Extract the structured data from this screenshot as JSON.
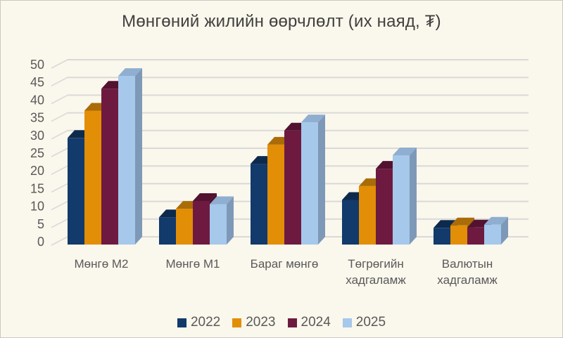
{
  "window": {
    "background_color": "#FAF7EC",
    "border_color": "#CBC8C0"
  },
  "chart_data": {
    "type": "bar",
    "projection": "3d-clustered-column",
    "title": "Мөнгөний жилийн өөрчлөлт (их наяд, ₮)",
    "categories": [
      "Мөнгө M2",
      "Мөнгө M1",
      "Бараг мөнгө",
      "Төгрөгийн хадгаламж",
      "Валютын хадгаламж"
    ],
    "series": [
      {
        "name": "2022",
        "color": "#123A6B",
        "color_top": "#0D2A4D",
        "color_side": "#102F55",
        "values": [
          30.1,
          7.7,
          22.8,
          12.6,
          4.7
        ]
      },
      {
        "name": "2023",
        "color": "#E28E06",
        "color_top": "#AA6C08",
        "color_side": "#9C6407",
        "values": [
          37.8,
          10.1,
          28.2,
          16.5,
          5.4
        ]
      },
      {
        "name": "2024",
        "color": "#6E1A40",
        "color_top": "#521230",
        "color_side": "#4A102B",
        "values": [
          44.0,
          12.3,
          32.2,
          21.4,
          4.8
        ]
      },
      {
        "name": "2025",
        "color": "#A5C8EB",
        "color_top": "#8FAED0",
        "color_side": "#7E99B8",
        "values": [
          47.6,
          11.4,
          34.5,
          25.2,
          5.6
        ]
      }
    ],
    "ylim": [
      0,
      50
    ],
    "ytick_step": 5,
    "ytick_labels": [
      "0",
      "5",
      "10",
      "15",
      "20",
      "25",
      "30",
      "35",
      "40",
      "45",
      "50"
    ],
    "grid": true,
    "gridline_color": "#D9D9D9",
    "axis_text_color": "#595959",
    "title_color": "#404040",
    "legend_position": "bottom",
    "legend_labels": [
      "2022",
      "2023",
      "2024",
      "2025"
    ]
  }
}
